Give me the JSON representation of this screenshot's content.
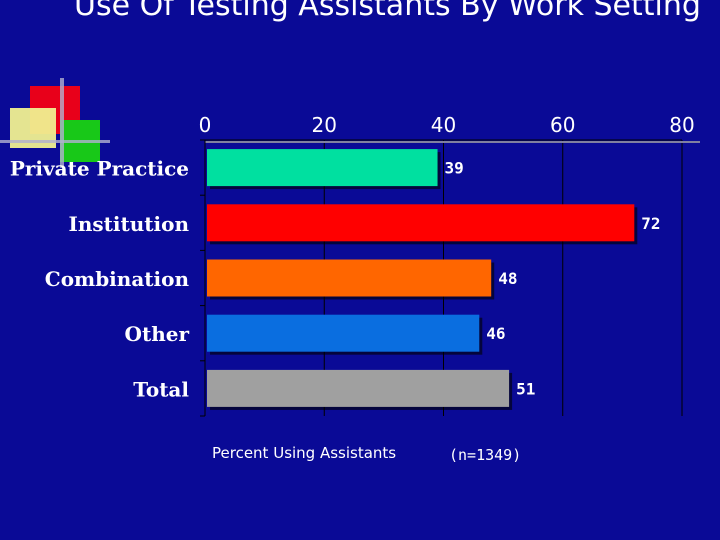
{
  "slide": {
    "title": "Use Of Testing Assistants By Work Setting"
  },
  "chart_data": {
    "type": "bar",
    "orientation": "horizontal",
    "categories": [
      "Private Practice",
      "Institution",
      "Combination",
      "Other",
      "Total"
    ],
    "values": [
      39,
      72,
      48,
      46,
      51
    ],
    "colors": [
      "#00e0a0",
      "#ff0000",
      "#ff6600",
      "#0a6ee0",
      "#a0a0a0"
    ],
    "xlim": [
      0,
      80
    ],
    "xticks": [
      0,
      20,
      40,
      60,
      80
    ],
    "xlabel": "Percent Using Assistants",
    "note": "(n=1349)",
    "grid": true,
    "axis_position": "top"
  }
}
